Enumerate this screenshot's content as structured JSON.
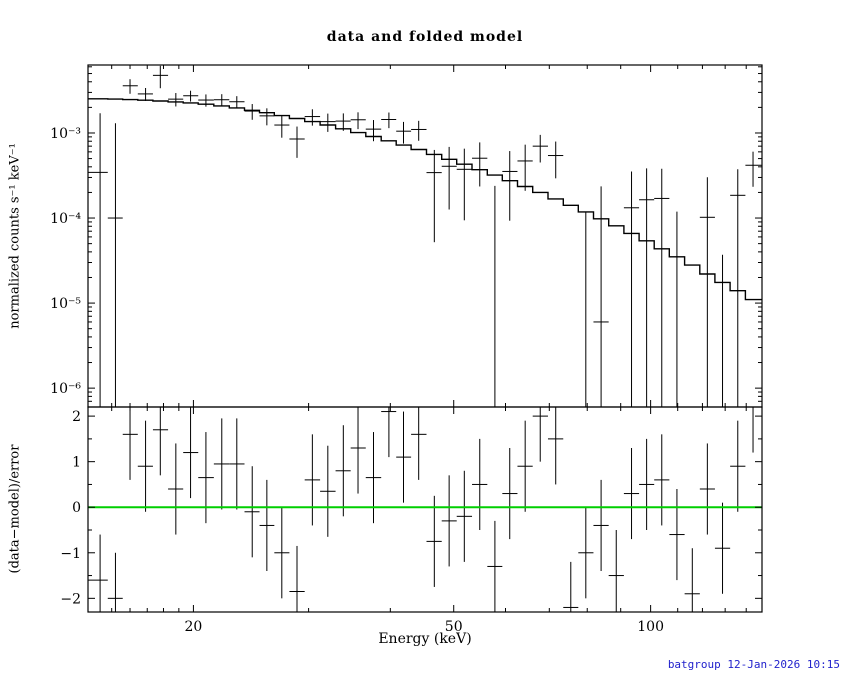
{
  "title": "data and folded model",
  "footer": {
    "text": "batgroup 12-Jan-2026 10:15",
    "color": "#2222cc"
  },
  "chart_data": {
    "type": "scatter",
    "title": "data and folded model",
    "xlabel": "Energy (keV)",
    "xscale": "log",
    "xlim": [
      13.8,
      148
    ],
    "xtick_values": [
      20,
      50,
      100
    ],
    "xtick_labels": [
      "20",
      "50",
      "100"
    ],
    "xminor_ticks": [
      15,
      16,
      17,
      18,
      19,
      30,
      40,
      60,
      70,
      80,
      90,
      110,
      120,
      130,
      140
    ],
    "grid": false,
    "legend": false,
    "panels": [
      {
        "name": "spectrum",
        "ylabel": "normalized counts s⁻¹ keV⁻¹",
        "yscale": "log",
        "ylim": [
          6e-07,
          0.0063
        ],
        "ytick_values": [
          1e-06,
          1e-05,
          0.0001,
          0.001
        ],
        "ytick_labels": [
          "10⁻⁶",
          "10⁻⁵",
          "10⁻⁴",
          "10⁻³"
        ]
      },
      {
        "name": "residuals",
        "ylabel": "(data−model)/error",
        "yscale": "linear",
        "ylim": [
          -2.3,
          2.2
        ],
        "ytick_values": [
          -2,
          -1,
          0,
          1,
          2
        ],
        "ytick_labels": [
          "−2",
          "−1",
          "0",
          "1",
          "2"
        ],
        "yminor_ticks": [
          -1.5,
          -0.5,
          0.5,
          1.5
        ],
        "zero_line_color": "#00cf00",
        "residual_errorbar": 1
      }
    ],
    "energies_kev": [
      14.4,
      15.2,
      16.0,
      16.9,
      17.8,
      18.8,
      19.8,
      20.9,
      22.1,
      23.3,
      24.6,
      25.9,
      27.3,
      28.8,
      30.4,
      32.1,
      33.9,
      35.7,
      37.7,
      39.8,
      41.9,
      44.2,
      46.7,
      49.2,
      51.9,
      54.8,
      57.8,
      60.9,
      64.3,
      67.8,
      71.6,
      75.5,
      79.6,
      84.0,
      88.6,
      93.5,
      98.6,
      104.0,
      109.7,
      115.8,
      122.1,
      128.8,
      135.9,
      143.4
    ],
    "data": [
      0.000344,
      0.0001,
      0.00359,
      0.00288,
      0.00476,
      0.0025,
      0.00274,
      0.00244,
      0.00246,
      0.00233,
      0.00181,
      0.00159,
      0.00124,
      0.00085,
      0.00156,
      0.00136,
      0.00138,
      0.00143,
      0.00111,
      0.00144,
      0.00105,
      0.0011,
      0.000342,
      0.000406,
      0.000374,
      0.000505,
      -3.1e-05,
      0.000353,
      0.000469,
      0.0007,
      0.000543,
      -0.000387,
      -0.000122,
      6e-06,
      -0.000264,
      0.000132,
      0.000164,
      0.00017,
      -9.1e-05,
      -0.000352,
      0.000102,
      -0.000158,
      0.000185,
      0.000418
    ],
    "err": [
      0.00136,
      0.0012,
      0.0007,
      0.0005,
      0.0014,
      0.00045,
      0.0004,
      0.0004,
      0.0004,
      0.00038,
      0.00038,
      0.00036,
      0.00036,
      0.00034,
      0.00034,
      0.00033,
      0.00032,
      0.00032,
      0.00031,
      0.0003,
      0.0003,
      0.00029,
      0.00029,
      0.00028,
      0.00028,
      0.00027,
      0.00027,
      0.00026,
      0.00026,
      0.00025,
      0.00025,
      0.00024,
      0.00024,
      0.00023,
      0.00023,
      0.00022,
      0.00022,
      0.00021,
      0.00021,
      0.0002,
      0.0002,
      0.000195,
      0.00019,
      0.000185
    ],
    "model": [
      0.00252,
      0.0025,
      0.00247,
      0.00243,
      0.00238,
      0.00232,
      0.00226,
      0.00218,
      0.00208,
      0.00197,
      0.00185,
      0.00173,
      0.0016,
      0.00148,
      0.00136,
      0.00124,
      0.00112,
      0.00101,
      0.00091,
      0.00081,
      0.00072,
      0.00064,
      0.00056,
      0.00049,
      0.00043,
      0.00037,
      0.00032,
      0.000275,
      0.000235,
      0.0002,
      0.000168,
      0.000141,
      0.000118,
      9.8e-05,
      8.1e-05,
      6.6e-05,
      5.4e-05,
      4.35e-05,
      3.5e-05,
      2.8e-05,
      2.2e-05,
      1.75e-05,
      1.4e-05,
      1.1e-05
    ],
    "residuals": [
      -1.6,
      -2.0,
      1.6,
      0.9,
      1.7,
      0.4,
      1.2,
      0.65,
      0.95,
      0.95,
      -0.1,
      -0.4,
      -1.0,
      -1.85,
      0.6,
      0.35,
      0.8,
      1.3,
      0.65,
      2.1,
      1.1,
      1.6,
      -0.75,
      -0.3,
      -0.2,
      0.5,
      -1.3,
      0.3,
      0.9,
      2.0,
      1.5,
      -2.2,
      -1.0,
      -0.4,
      -1.5,
      0.3,
      0.5,
      0.6,
      -0.6,
      -1.9,
      0.4,
      -0.9,
      0.9,
      2.2
    ]
  }
}
